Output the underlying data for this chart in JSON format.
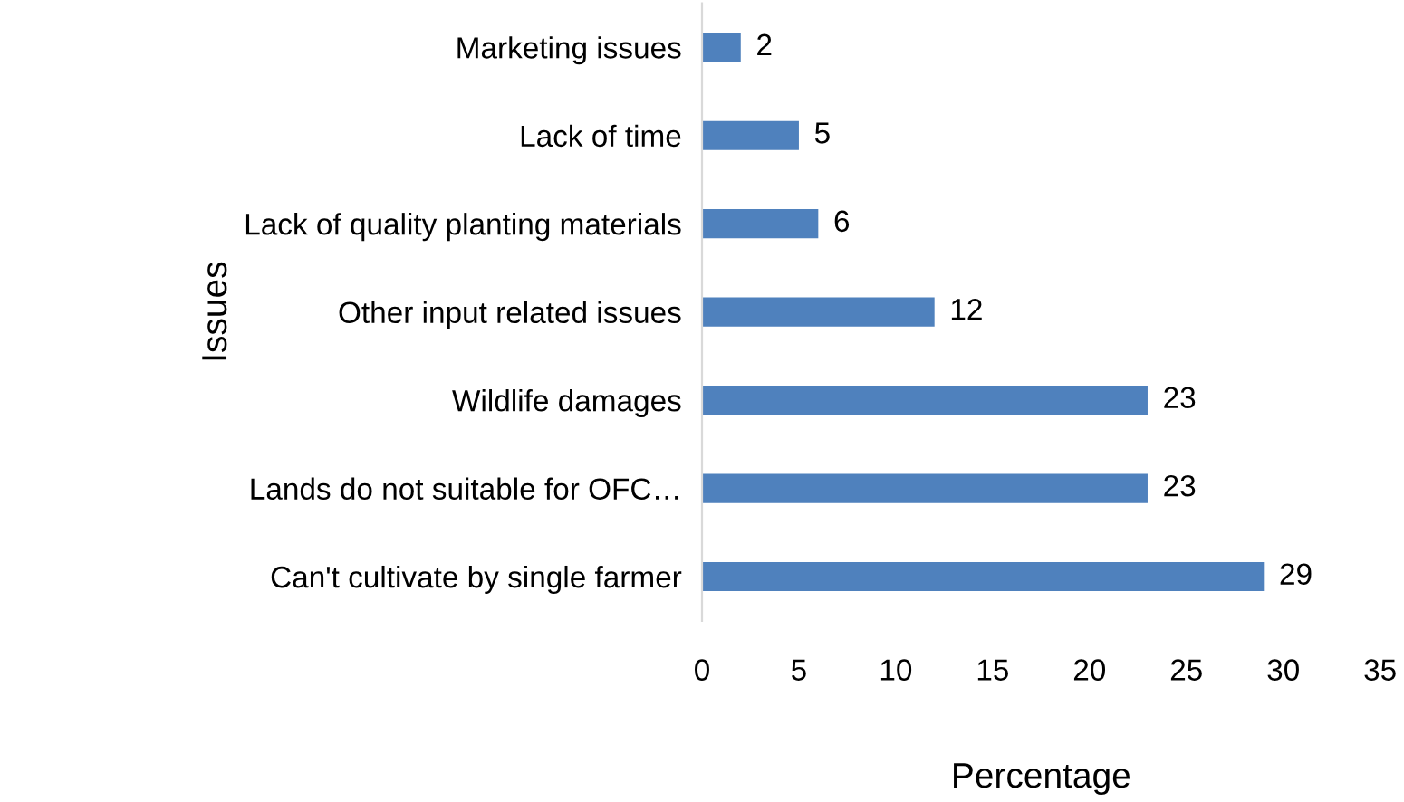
{
  "chart_data": {
    "type": "bar",
    "orientation": "horizontal",
    "xlabel": "Percentage",
    "ylabel": "Issues",
    "categories": [
      "Marketing issues",
      "Lack of time",
      "Lack of quality planting materials",
      "Other input related issues",
      "Wildlife damages",
      "Lands do not suitable for OFC…",
      "Can't cultivate by single farmer"
    ],
    "values": [
      2,
      5,
      6,
      12,
      23,
      23,
      29
    ],
    "color": "#4f81bd",
    "data_labels": true,
    "xlim": [
      0,
      35
    ],
    "xticks": [
      0,
      5,
      10,
      15,
      20,
      25,
      30,
      35
    ],
    "grid": false,
    "legend": false
  }
}
